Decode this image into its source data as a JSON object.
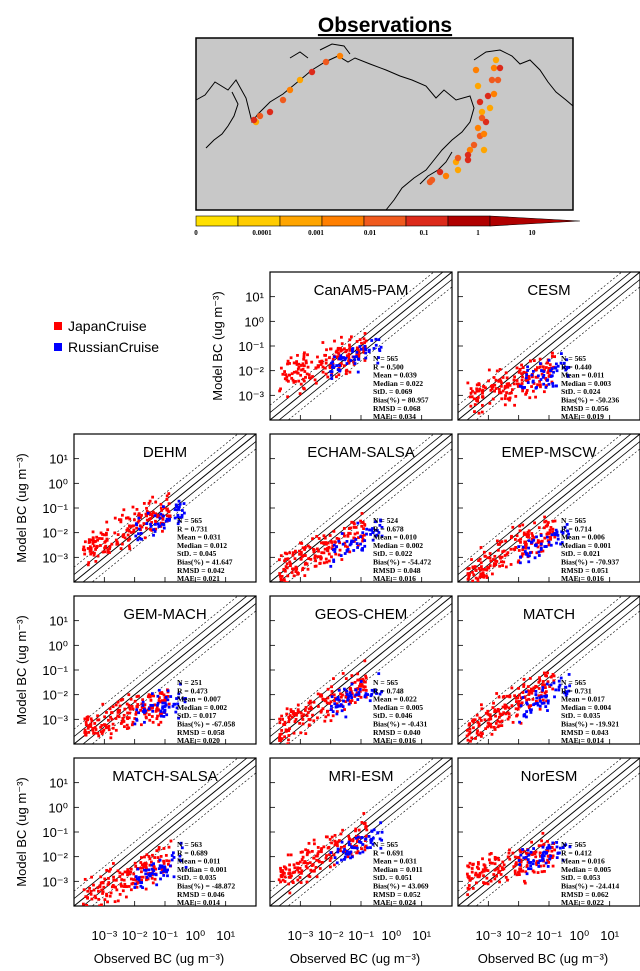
{
  "map": {
    "title": "Observations",
    "colorbar_ticks": [
      "0",
      "0.0001",
      "0.001",
      "0.01",
      "0.1",
      "1",
      "10"
    ],
    "colors": [
      "#ffe000",
      "#ffcc00",
      "#ffa500",
      "#ff7f00",
      "#f05a1e",
      "#dc2a1a",
      "#b00000"
    ]
  },
  "legend": [
    {
      "name": "JapanCruise",
      "color": "#ff0000"
    },
    {
      "name": "RussianCruise",
      "color": "#0000ff"
    }
  ],
  "axes": {
    "ylabel": "Model BC (ug m⁻³)",
    "xlabel": "Observed BC (ug m⁻³)",
    "ticks": [
      "10⁻³",
      "10⁻²",
      "10⁻¹",
      "10⁰",
      "10¹"
    ]
  },
  "chart_data": {
    "type": "scatter",
    "xscale": "log",
    "yscale": "log",
    "xlim": [
      0.0001,
      100
    ],
    "ylim": [
      0.0001,
      100
    ],
    "panels": [
      {
        "title": "CanAM5-PAM",
        "stats": {
          "N": "565",
          "R": "0.500",
          "Mean": "0.039",
          "Median": "0.022",
          "StD.": "0.069",
          "Bias(%)": "80.957",
          "RMSD": "0.068",
          "MAE": "0.034"
        },
        "ycenter": -1.7
      },
      {
        "title": "CESM",
        "stats": {
          "N": "565",
          "R": "0.440",
          "Mean": "0.011",
          "Median": "0.003",
          "StD.": "0.024",
          "Bias(%)": "-50.236",
          "RMSD": "0.056",
          "MAE": "0.019"
        },
        "ycenter": -2.5
      },
      {
        "title": "DEHM",
        "stats": {
          "N": "565",
          "R": "0.731",
          "Mean": "0.031",
          "Median": "0.012",
          "StD.": "0.045",
          "Bias(%)": "41.647",
          "RMSD": "0.042",
          "MAE": "0.021"
        },
        "ycenter": -1.9
      },
      {
        "title": "ECHAM-SALSA",
        "stats": {
          "N": "524",
          "R": "0.678",
          "Mean": "0.010",
          "Median": "0.002",
          "StD.": "0.022",
          "Bias(%)": "-54.472",
          "RMSD": "0.048",
          "MAE": "0.016"
        },
        "ycenter": -2.7
      },
      {
        "title": "EMEP-MSCW",
        "stats": {
          "N": "565",
          "R": "0.714",
          "Mean": "0.006",
          "Median": "0.001",
          "StD.": "0.021",
          "Bias(%)": "-70.937",
          "RMSD": "0.051",
          "MAE": "0.016"
        },
        "ycenter": -2.7
      },
      {
        "title": "GEM-MACH",
        "stats": {
          "N": "251",
          "R": "0.473",
          "Mean": "0.007",
          "Median": "0.002",
          "StD.": "0.017",
          "Bias(%)": "-67.058",
          "RMSD": "0.058",
          "MAE": "0.020"
        },
        "ycenter": -2.8
      },
      {
        "title": "GEOS-CHEM",
        "stats": {
          "N": "565",
          "R": "0.748",
          "Mean": "0.022",
          "Median": "0.005",
          "StD.": "0.046",
          "Bias(%)": "-0.431",
          "RMSD": "0.040",
          "MAE": "0.016"
        },
        "ycenter": -2.4
      },
      {
        "title": "MATCH",
        "stats": {
          "N": "565",
          "R": "0.731",
          "Mean": "0.017",
          "Median": "0.004",
          "StD.": "0.035",
          "Bias(%)": "-19.921",
          "RMSD": "0.043",
          "MAE": "0.014"
        },
        "ycenter": -2.4
      },
      {
        "title": "MATCH-SALSA",
        "stats": {
          "N": "563",
          "R": "0.689",
          "Mean": "0.011",
          "Median": "0.001",
          "StD.": "0.035",
          "Bias(%)": "-48.872",
          "RMSD": "0.046",
          "MAE": "0.014"
        },
        "ycenter": -2.9
      },
      {
        "title": "MRI-ESM",
        "stats": {
          "N": "565",
          "R": "0.691",
          "Mean": "0.031",
          "Median": "0.011",
          "StD.": "0.051",
          "Bias(%)": "43.069",
          "RMSD": "0.052",
          "MAE": "0.024"
        },
        "ycenter": -1.9
      },
      {
        "title": "NorESM",
        "stats": {
          "N": "565",
          "R": "0.412",
          "Mean": "0.016",
          "Median": "0.005",
          "StD.": "0.053",
          "Bias(%)": "-24.414",
          "RMSD": "0.062",
          "MAE": "0.022"
        },
        "ycenter": -2.3
      }
    ]
  }
}
